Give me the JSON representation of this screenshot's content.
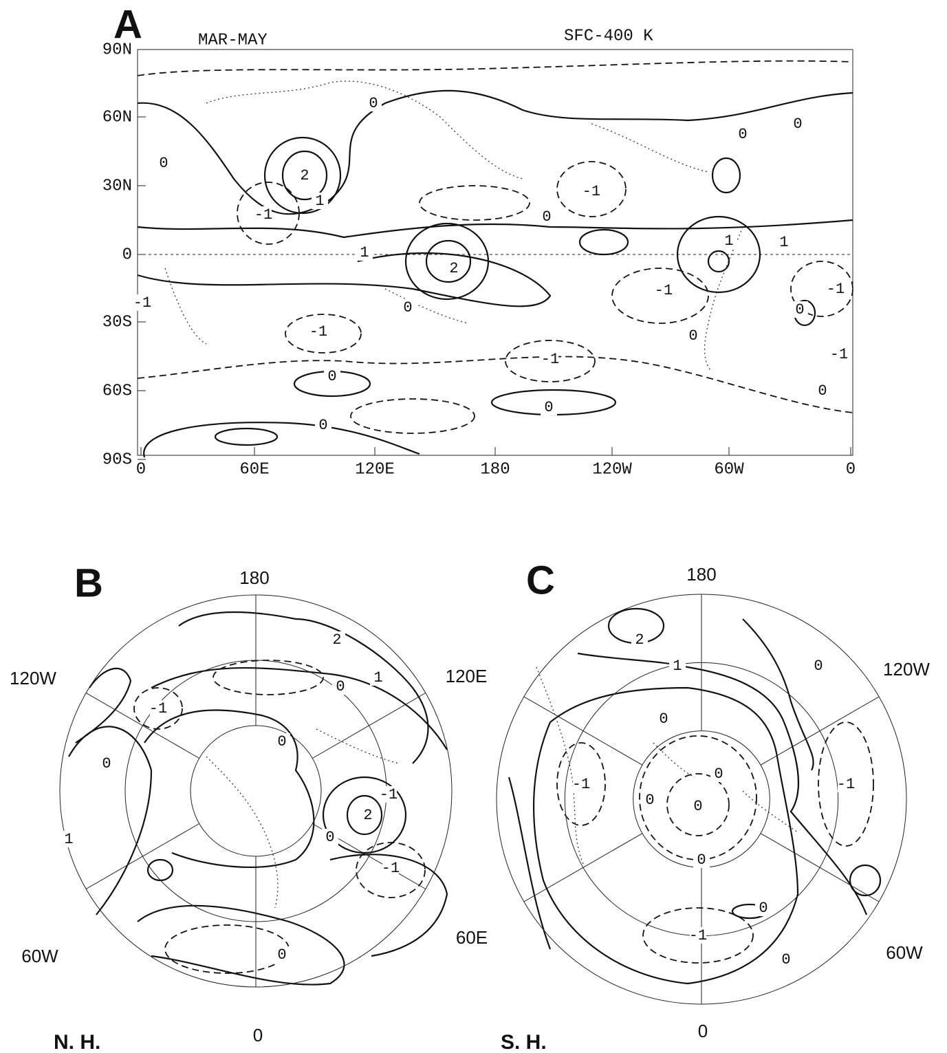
{
  "panel_a": {
    "letter": "A",
    "season": "MAR-MAY",
    "layer": "SFC-400 K",
    "y_axis": [
      "90N",
      "60N",
      "30N",
      "0",
      "30S",
      "60S",
      "90S"
    ],
    "x_axis": [
      "0",
      "60E",
      "120E",
      "180",
      "120W",
      "60W",
      "0"
    ],
    "contour_labels": [
      "0",
      "0",
      "0",
      "0",
      "0",
      "0",
      "0",
      "0",
      "0",
      "0",
      "0",
      "0",
      "2",
      "2",
      "-1",
      "-1",
      "-1",
      "-1",
      "-1",
      "-1",
      "-1",
      "-1",
      "1",
      "1",
      "1",
      "1"
    ]
  },
  "panel_b": {
    "letter": "B",
    "hemisphere": "N. H.",
    "longitudes": [
      "180",
      "120E",
      "60E",
      "0",
      "60W",
      "120W"
    ],
    "contour_labels": [
      "2",
      "0",
      "1",
      "-1",
      "0",
      "0",
      "-1",
      "2",
      "0",
      "-1",
      "1",
      "0"
    ]
  },
  "panel_c": {
    "letter": "C",
    "hemisphere": "S. H.",
    "longitudes": [
      "180",
      "120W",
      "60W",
      "0"
    ],
    "contour_labels": [
      "2",
      "1",
      "0",
      "0",
      "-1",
      "-1",
      "0",
      "0",
      "0",
      "0",
      "0",
      "-1",
      "0"
    ]
  }
}
